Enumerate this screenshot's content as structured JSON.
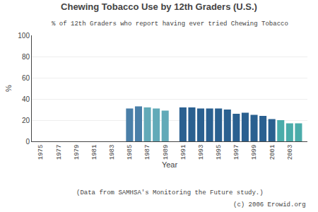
{
  "chart_data": {
    "type": "bar",
    "title": "Chewing Tobacco Use by 12th Graders (U.S.)",
    "subtitle": "% of 12th Graders who report having ever tried Chewing Tobacco",
    "xlabel": "Year",
    "ylabel": "%",
    "annotations": [
      "(Data from SAMHSA's Monitoring the Future study.)",
      "(c) 2006 Erowid.org"
    ],
    "x": [
      1975,
      1976,
      1977,
      1978,
      1979,
      1980,
      1981,
      1982,
      1983,
      1984,
      1985,
      1986,
      1987,
      1988,
      1989,
      1990,
      1991,
      1992,
      1993,
      1994,
      1995,
      1996,
      1997,
      1998,
      1999,
      2000,
      2001,
      2002,
      2003,
      2004
    ],
    "values": [
      0,
      0,
      0,
      0,
      0,
      0,
      0,
      0,
      0,
      0,
      31,
      33,
      32,
      31,
      29,
      0,
      32,
      32,
      31,
      31,
      31,
      30,
      26,
      27,
      25,
      24,
      21,
      20,
      17,
      17
    ],
    "colors": [
      "#000000",
      "#000000",
      "#000000",
      "#000000",
      "#000000",
      "#000000",
      "#000000",
      "#000000",
      "#000000",
      "#000000",
      "#4a7fa8",
      "#4a7fa8",
      "#62aab8",
      "#62aab8",
      "#62aab8",
      "#000000",
      "#2a6090",
      "#2a6090",
      "#2a6090",
      "#2a6090",
      "#2a6090",
      "#2a6090",
      "#2a6090",
      "#2a6090",
      "#2a6090",
      "#2a6090",
      "#2a6090",
      "#4aacaa",
      "#4aacaa",
      "#4aacaa"
    ],
    "xlim": [
      1974,
      2005
    ],
    "xticks": [
      1975,
      1977,
      1979,
      1981,
      1983,
      1985,
      1987,
      1989,
      1991,
      1993,
      1995,
      1997,
      1999,
      2001,
      2003
    ],
    "ylim": [
      0,
      100
    ],
    "yticks": [
      0,
      20,
      40,
      60,
      80,
      100
    ],
    "grid": true
  }
}
